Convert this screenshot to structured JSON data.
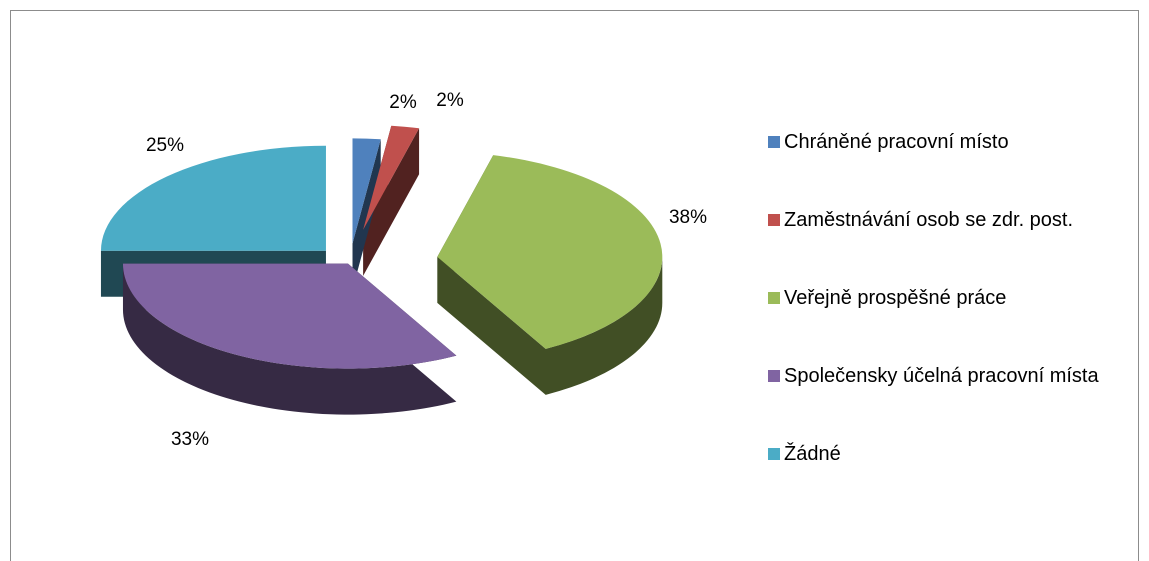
{
  "chart_data": {
    "type": "pie",
    "categories": [
      "Chráněné pracovní místo",
      "Zaměstnávání osob se zdr. post.",
      "Veřejně prospěšné práce",
      "Společensky účelná pracovní místa",
      "Žádné"
    ],
    "values": [
      2,
      2,
      38,
      33,
      25
    ],
    "value_labels": [
      "2%",
      "2%",
      "38%",
      "33%",
      "25%"
    ],
    "colors": [
      "#4f81bd",
      "#c0504d",
      "#9bbb59",
      "#8064a2",
      "#4bacc6"
    ],
    "legend": "right"
  }
}
